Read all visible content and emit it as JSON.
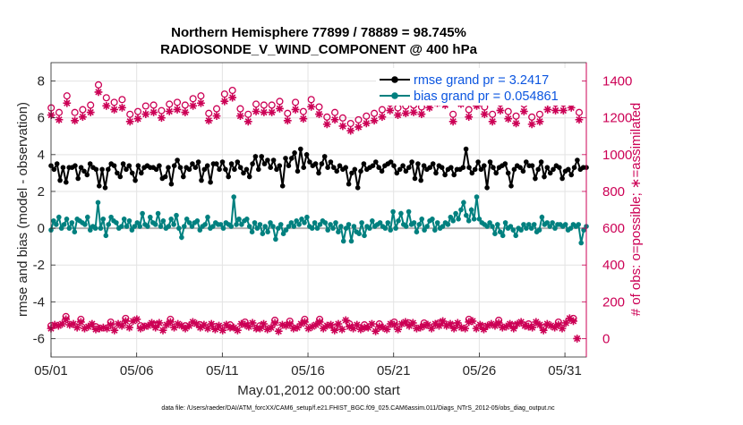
{
  "chart_data": {
    "type": "line",
    "title_line1": "Northern Hemisphere 77899 / 78889 = 98.745%",
    "title_line2": "RADIOSONDE_V_WIND_COMPONENT @ 400 hPa",
    "xlabel": "May.01,2012 00:00:00 start",
    "ylabel_left": "rmse and bias (model - observation)",
    "ylabel_right": "# of obs: o=possible; ∗=assimilated",
    "x_tick_labels": [
      "05/01",
      "05/06",
      "05/11",
      "05/16",
      "05/21",
      "05/26",
      "05/31"
    ],
    "x_tick_days": [
      0,
      5,
      10,
      15,
      20,
      25,
      30
    ],
    "xlim_days": [
      0,
      31.25
    ],
    "left_ylim": [
      -7,
      9
    ],
    "left_ticks": [
      -6,
      -4,
      -2,
      0,
      2,
      4,
      6,
      8
    ],
    "right_ylim": [
      -100,
      1500
    ],
    "right_ticks": [
      0,
      200,
      400,
      600,
      800,
      1000,
      1200,
      1400
    ],
    "grid": true,
    "legend_position": "top-right",
    "colors": {
      "rmse": "#000000",
      "bias": "#00807f",
      "obs": "#cc0055",
      "zero_line": "#b3b3b3",
      "legend_text": "#0b55e0"
    },
    "series": [
      {
        "name": "rmse grand pr = 3.2417",
        "axis": "left",
        "values": [
          3.4,
          3.2,
          3.5,
          2.6,
          3.3,
          2.5,
          3.3,
          3.3,
          3.4,
          2.7,
          3.3,
          3.1,
          2.9,
          3.5,
          3.3,
          3.2,
          2.3,
          3.2,
          2.2,
          3.2,
          3.5,
          3.4,
          3.0,
          2.8,
          3.5,
          3.2,
          3.4,
          3.0,
          2.6,
          3.4,
          3.0,
          3.3,
          3.4,
          3.3,
          3.3,
          3.2,
          3.4,
          2.7,
          2.8,
          3.3,
          2.4,
          3.4,
          3.7,
          3.3,
          2.8,
          3.3,
          3.2,
          3.5,
          3.3,
          3.6,
          2.6,
          3.2,
          3.4,
          2.5,
          3.5,
          3.5,
          3.2,
          3.6,
          3.2,
          2.8,
          3.5,
          3.2,
          3.6,
          3.3,
          3.0,
          3.2,
          2.8,
          3.5,
          3.9,
          3.2,
          3.9,
          3.5,
          3.7,
          3.3,
          3.7,
          3.2,
          3.4,
          2.3,
          3.8,
          3.4,
          3.8,
          4.1,
          3.1,
          4.3,
          3.3,
          4.0,
          3.6,
          3.4,
          3.5,
          3.0,
          3.5,
          3.9,
          3.3,
          3.6,
          3.3,
          3.1,
          3.4,
          3.2,
          3.3,
          2.4,
          3.0,
          3.2,
          2.2,
          3.1,
          3.5,
          3.2,
          3.3,
          3.4,
          3.6,
          3.3,
          3.1,
          3.4,
          3.5,
          3.6,
          3.4,
          3.0,
          3.2,
          3.4,
          3.1,
          3.3,
          3.6,
          2.7,
          3.5,
          2.6,
          3.4,
          3.2,
          3.3,
          3.5,
          3.0,
          3.4,
          3.3,
          2.9,
          3.2,
          3.3,
          2.9,
          3.2,
          3.2,
          3.3,
          4.3,
          3.3,
          3.0,
          3.2,
          3.6,
          3.2,
          3.4,
          2.2,
          3.6,
          3.3,
          3.0,
          3.3,
          3.4,
          3.5,
          3.0,
          2.3,
          3.2,
          3.4,
          3.3,
          3.1,
          3.6,
          3.4,
          3.4,
          2.7,
          3.2,
          3.6,
          2.8,
          3.3,
          3.0,
          3.2,
          3.4,
          3.3,
          2.7,
          3.1,
          3.2,
          2.9,
          3.3,
          3.7,
          3.2,
          3.3,
          3.3
        ]
      },
      {
        "name": "bias grand pr = 0.054861",
        "axis": "left",
        "values": [
          -0.1,
          0.4,
          0.2,
          0.6,
          0.0,
          0.2,
          0.5,
          0.0,
          0.3,
          -0.2,
          0.5,
          0.4,
          0.3,
          0.2,
          0.6,
          -0.1,
          0.1,
          0.0,
          1.4,
          0.0,
          0.5,
          -0.4,
          0.2,
          0.6,
          0.4,
          0.3,
          0.0,
          0.1,
          0.5,
          0.1,
          0.4,
          -0.1,
          0.1,
          0.3,
          0.1,
          0.8,
          0.2,
          0.1,
          0.6,
          0.3,
          0.2,
          0.8,
          0.1,
          0.4,
          0.0,
          0.1,
          0.5,
          0.2,
          0.7,
          0.0,
          -0.5,
          0.1,
          0.5,
          0.3,
          0.1,
          0.3,
          0.4,
          -0.1,
          0.1,
          0.2,
          0.6,
          0.0,
          0.1,
          0.3,
          0.2,
          0.2,
          0.0,
          0.3,
          0.2,
          0.1,
          1.7,
          0.2,
          0.5,
          0.2,
          0.4,
          0.5,
          0.1,
          -0.2,
          0.3,
          0.0,
          0.2,
          -0.3,
          0.1,
          -0.2,
          0.3,
          0.1,
          -0.6,
          0.0,
          0.2,
          -0.3,
          -0.1,
          0.1,
          0.3,
          0.1,
          0.4,
          0.2,
          0.5,
          0.3,
          0.6,
          0.1,
          0.0,
          0.3,
          0.0,
          0.2,
          0.4,
          0.3,
          -0.1,
          0.2,
          0.0,
          0.3,
          -0.2,
          0.1,
          -0.7,
          0.0,
          0.2,
          -0.7,
          0.1,
          -0.2,
          -0.3,
          0.3,
          -0.4,
          0.1,
          0.0,
          0.4,
          0.1,
          0.2,
          0.3,
          0.1,
          0.0,
          0.3,
          -0.1,
          0.9,
          0.0,
          0.4,
          0.8,
          0.2,
          0.1,
          0.9,
          0.2,
          0.3,
          -0.2,
          0.2,
          0.5,
          -0.1,
          0.1,
          0.4,
          0.5,
          -0.1,
          0.3,
          0.0,
          0.1,
          0.3,
          0.2,
          0.6,
          0.4,
          0.8,
          0.5,
          1.0,
          1.4,
          0.7,
          0.4,
          1.0,
          0.5,
          1.7,
          0.5,
          0.3,
          0.2,
          0.1,
          0.3,
          0.1,
          -0.3,
          0.2,
          -0.2,
          -0.4,
          0.3,
          0.0,
          0.1,
          -0.1,
          -0.4,
          0.0,
          -0.1,
          0.2,
          0.0,
          0.2,
          0.0,
          0.2,
          -0.2,
          -0.1,
          0.6,
          0.2,
          0.3,
          0.1,
          0.3,
          0.0,
          0.2,
          0.2,
          0.1,
          0.2,
          -0.1,
          0.0,
          0.2,
          0.1,
          0.2,
          -0.8,
          -0.1,
          0.1
        ]
      },
      {
        "name": "obs possible",
        "axis": "right",
        "values": [
          1225,
          1200,
          1290,
          1200,
          1215,
          1240,
          1350,
          1280,
          1255,
          1270,
          1190,
          1205,
          1235,
          1240,
          1210,
          1245,
          1255,
          1240,
          1275,
          1290,
          1195,
          1220,
          1300,
          1320,
          1220,
          1190,
          1245,
          1240,
          1240,
          1260,
          1195,
          1255,
          1205,
          1270,
          1230,
          1175,
          1200,
          1170,
          1140,
          1160,
          1180,
          1195,
          1215,
          1250,
          1225,
          1235,
          1240,
          1230,
          1265,
          1290,
          1280,
          1190,
          1285,
          1215,
          1275,
          1230,
          1190,
          1250,
          1205,
          1180,
          1245,
          1175,
          1190,
          1255,
          1250,
          1250,
          1265,
          1200
        ],
        "x_days": [
          0.0,
          0.25,
          0.75,
          1.0,
          1.5,
          1.75,
          2.25,
          2.5,
          3.0,
          3.25,
          3.75,
          4.0,
          4.5,
          4.75,
          5.25,
          5.5,
          6.0,
          6.25,
          6.75,
          7.0,
          7.5,
          7.75,
          8.25,
          8.5,
          9.0,
          9.25,
          9.75,
          10.0,
          10.5,
          10.75,
          11.25,
          11.5,
          12.0,
          12.25,
          12.75,
          13.0,
          13.5,
          13.75,
          14.25,
          14.5,
          15.0,
          15.25,
          15.75,
          16.0,
          16.5,
          16.75,
          17.25,
          17.5,
          18.0,
          18.25,
          18.75,
          19.0,
          19.5,
          19.75,
          20.25,
          20.5,
          21.0,
          21.25,
          21.75,
          22.0,
          22.5,
          22.75,
          23.25,
          23.5,
          24.0,
          24.25,
          24.75,
          25.0
        ]
      },
      {
        "name": "obs assimilated",
        "axis": "right",
        "values": [
          1215,
          1190,
          1280,
          1185,
          1205,
          1230,
          1340,
          1265,
          1245,
          1255,
          1180,
          1195,
          1220,
          1230,
          1200,
          1235,
          1245,
          1230,
          1265,
          1280,
          1185,
          1210,
          1290,
          1310,
          1210,
          1180,
          1235,
          1230,
          1230,
          1250,
          1185,
          1245,
          1195,
          1260,
          1220,
          1165,
          1190,
          1155,
          1130,
          1150,
          1170,
          1185,
          1205,
          1240,
          1215,
          1225,
          1230,
          1220,
          1255,
          1280,
          1270,
          1180,
          1275,
          1205,
          1265,
          1220,
          1180,
          1240,
          1195,
          1170,
          1235,
          1165,
          1180,
          1245,
          1240,
          1240,
          1255,
          1190
        ],
        "x_days": [
          0.0,
          0.25,
          0.75,
          1.0,
          1.5,
          1.75,
          2.25,
          2.5,
          3.0,
          3.25,
          3.75,
          4.0,
          4.5,
          4.75,
          5.25,
          5.5,
          6.0,
          6.25,
          6.75,
          7.0,
          7.5,
          7.75,
          8.25,
          8.5,
          9.0,
          9.25,
          9.75,
          10.0,
          10.5,
          10.75,
          11.25,
          11.5,
          12.0,
          12.25,
          12.75,
          13.0,
          13.5,
          13.75,
          14.25,
          14.5,
          15.0,
          15.25,
          15.75,
          16.0,
          16.5,
          16.75,
          17.25,
          17.5,
          18.0,
          18.25,
          18.75,
          19.0,
          19.5,
          19.75,
          20.25,
          20.5,
          21.0,
          21.25,
          21.75,
          22.0,
          22.5,
          22.75,
          23.25,
          23.5,
          24.0,
          24.25,
          24.75,
          25.0
        ]
      },
      {
        "name": "obs low possible",
        "axis": "right",
        "values": [
          55,
          75,
          70,
          80,
          105,
          75,
          80,
          60,
          90,
          55,
          65,
          80,
          50,
          55,
          60,
          55,
          75,
          45,
          80,
          70,
          95,
          60,
          95,
          105,
          55,
          65,
          70,
          85,
          60,
          85,
          45,
          75,
          90,
          60,
          80,
          70,
          55,
          70,
          90,
          80,
          60,
          75,
          55,
          80,
          50,
          70,
          45,
          75,
          60,
          60,
          45,
          80,
          75,
          65,
          85,
          55,
          55,
          80,
          50,
          60,
          85,
          40,
          75,
          70,
          80,
          55,
          60,
          80,
          90,
          55,
          65,
          75,
          90,
          55,
          70,
          75,
          45,
          80,
          50,
          100,
          65,
          55,
          75,
          50,
          60,
          60,
          80,
          40,
          65,
          60,
          50,
          80,
          75,
          50,
          80,
          90,
          70,
          85,
          55,
          60,
          70,
          75,
          55,
          80,
          70,
          95,
          70,
          80,
          55,
          85,
          60,
          55,
          90,
          95,
          55,
          75,
          50,
          70,
          80,
          70,
          85,
          60,
          65,
          80,
          55,
          80,
          90,
          70,
          65,
          60,
          90,
          75,
          45,
          80,
          70,
          60,
          75,
          55,
          85,
          110,
          95,
          0
        ]
      }
    ],
    "footer": "data file: /Users/raeder/DAI/ATM_forcXX/CAM6_setup/f.e21.FHIST_BGC.f09_025.CAM6assim.011/Diags_NTrS_2012-05/obs_diag_output.nc"
  }
}
